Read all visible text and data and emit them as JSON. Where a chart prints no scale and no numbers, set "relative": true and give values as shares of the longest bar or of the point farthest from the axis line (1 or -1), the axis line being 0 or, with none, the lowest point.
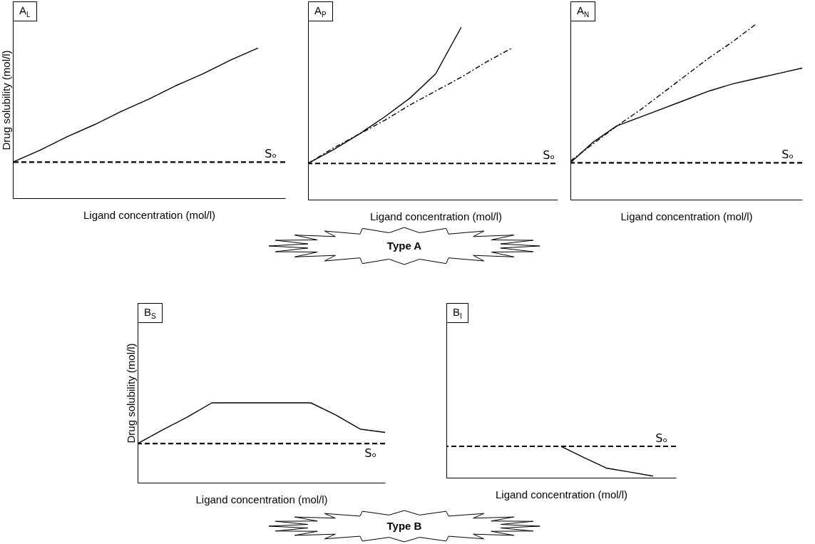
{
  "chart_data": [
    {
      "type": "line",
      "title": "A$_{L}$",
      "xlabel": "Ligand concentration (mol/l)",
      "ylabel": "Drug solubility (mol/l)",
      "relative": true,
      "categories": [
        null,
        null,
        null,
        null,
        null,
        null,
        null,
        null,
        null,
        null,
        null
      ],
      "series": [
        {
          "color": "#000000",
          "values": [
            0.24,
            0.32,
            0.41,
            0.49,
            0.58,
            0.66,
            0.75,
            0.83,
            0.92,
            1.0,
            null
          ]
        }
      ],
      "ref_lines": [
        {
          "axis": "y",
          "value": 0.24,
          "label": "Sₒ",
          "color": "#000000",
          "line_style": "dashed"
        }
      ]
    },
    {
      "type": "line",
      "title": "A$_{P}$",
      "xlabel": "Ligand concentration (mol/l)",
      "relative": true,
      "categories": [
        null,
        null,
        null,
        null,
        null,
        null,
        null,
        null,
        null,
        null,
        null
      ],
      "series": [
        {
          "color": "#000000",
          "values": [
            0.21,
            0.29,
            0.38,
            0.48,
            0.59,
            0.73,
            1.0,
            null,
            null,
            null,
            null
          ]
        },
        {
          "color": "#000000",
          "line_style": "dashed",
          "values": [
            0.21,
            0.3,
            0.38,
            0.46,
            0.55,
            0.63,
            0.71,
            0.8,
            0.88,
            null,
            null
          ]
        }
      ],
      "ref_lines": [
        {
          "axis": "y",
          "value": 0.21,
          "label": "Sₒ",
          "color": "#000000",
          "line_style": "dashed"
        }
      ]
    },
    {
      "type": "line",
      "title": "A$_{N}$",
      "xlabel": "Ligand concentration (mol/l)",
      "relative": true,
      "categories": [
        null,
        null,
        null,
        null,
        null,
        null,
        null,
        null,
        null,
        null,
        null
      ],
      "series": [
        {
          "color": "#000000",
          "values": [
            0.21,
            0.33,
            0.42,
            0.47,
            0.52,
            0.57,
            0.62,
            0.66,
            0.69,
            0.72,
            0.75
          ]
        },
        {
          "color": "#000000",
          "line_style": "dashed",
          "values": [
            0.22,
            0.32,
            0.42,
            0.51,
            0.61,
            0.71,
            0.81,
            0.9,
            1.0,
            null,
            null
          ]
        }
      ],
      "ref_lines": [
        {
          "axis": "y",
          "value": 0.21,
          "label": "Sₒ",
          "color": "#000000",
          "line_style": "dashed"
        }
      ]
    },
    {
      "type": "other",
      "title": "Type A"
    },
    {
      "type": "line",
      "title": "B$_{S}$",
      "xlabel": "Ligand concentration (mol/l)",
      "ylabel": "Drug solubility (mol/l)",
      "relative": true,
      "categories": [
        null,
        null,
        null,
        null,
        null,
        null,
        null,
        null,
        null,
        null,
        null
      ],
      "series": [
        {
          "color": "#000000",
          "values": [
            0.49,
            0.66,
            0.82,
            1.0,
            1.0,
            1.0,
            1.0,
            1.0,
            0.85,
            0.67,
            0.63
          ]
        }
      ],
      "ref_lines": [
        {
          "axis": "y",
          "value": 0.49,
          "label": "Sₒ",
          "color": "#000000",
          "line_style": "dashed"
        }
      ]
    },
    {
      "type": "line",
      "title": "B$_{I}$",
      "xlabel": "Ligand concentration (mol/l)",
      "relative": true,
      "categories": [
        null,
        null,
        null,
        null,
        null,
        null,
        null,
        null,
        null,
        null,
        null
      ],
      "series": [
        {
          "color": "#000000",
          "values": [
            null,
            null,
            null,
            null,
            null,
            1.0,
            0.64,
            0.3,
            0.18,
            0.05,
            null
          ]
        }
      ],
      "ref_lines": [
        {
          "axis": "y",
          "value": 1.0,
          "label": "Sₒ",
          "color": "#000000",
          "line_style": "dashed"
        }
      ]
    },
    {
      "type": "other",
      "title": "Type B"
    }
  ]
}
